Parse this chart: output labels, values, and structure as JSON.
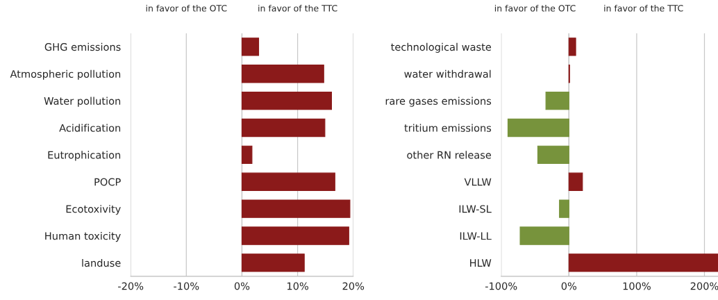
{
  "chart_data": [
    {
      "type": "bar",
      "orientation": "horizontal",
      "annotations": [
        "in favor of the OTC",
        "in favor of the TTC"
      ],
      "categories": [
        "GHG emissions",
        "Atmospheric pollution",
        "Water pollution",
        "Acidification",
        "Eutrophication",
        "POCP",
        "Ecotoxivity",
        "Human toxicity",
        "landuse"
      ],
      "values": [
        3.0,
        14.7,
        16.1,
        14.9,
        1.8,
        16.7,
        19.4,
        19.2,
        11.2
      ],
      "colors": [
        "#8b1a1a",
        "#8b1a1a",
        "#8b1a1a",
        "#8b1a1a",
        "#8b1a1a",
        "#8b1a1a",
        "#8b1a1a",
        "#8b1a1a",
        "#8b1a1a"
      ],
      "xlim": [
        -20,
        20
      ],
      "xticks": [
        {
          "value": -20,
          "label": "-20%"
        },
        {
          "value": -10,
          "label": "-10%"
        },
        {
          "value": 0,
          "label": "0%"
        },
        {
          "value": 10,
          "label": "10%"
        },
        {
          "value": 20,
          "label": "20%"
        }
      ],
      "grid": "x",
      "legend": false
    },
    {
      "type": "bar",
      "orientation": "horizontal",
      "annotations": [
        "in favor of the OTC",
        "in favor of the TTC"
      ],
      "categories": [
        "technological waste",
        "water withdrawal",
        "rare gases emissions",
        "tritium emissions",
        "other RN release",
        "VLLW",
        "ILW-SL",
        "ILW-LL",
        "HLW"
      ],
      "values": [
        10,
        1,
        -34,
        -90,
        -46,
        20,
        -14,
        -72,
        220
      ],
      "colors": [
        "#8b1a1a",
        "#8b1a1a",
        "#77933c",
        "#77933c",
        "#77933c",
        "#8b1a1a",
        "#77933c",
        "#77933c",
        "#8b1a1a"
      ],
      "xlim": [
        -100,
        220
      ],
      "xticks": [
        {
          "value": -100,
          "label": "-100%"
        },
        {
          "value": 0,
          "label": "0%"
        },
        {
          "value": 100,
          "label": "100%"
        },
        {
          "value": 200,
          "label": "200%"
        }
      ],
      "grid": "x",
      "legend": false
    }
  ]
}
